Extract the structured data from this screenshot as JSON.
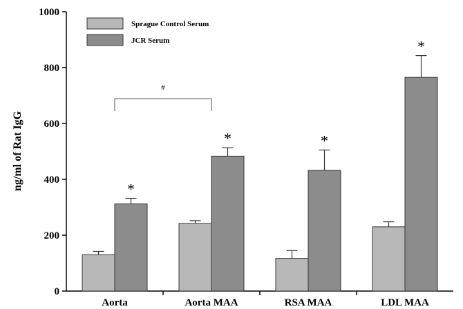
{
  "chart_data": {
    "type": "bar",
    "categories": [
      "Aorta",
      "Aorta MAA",
      "RSA MAA",
      "LDL MAA"
    ],
    "series": [
      {
        "name": "Sprague Control Serum",
        "color": "#b8b8b8",
        "values": [
          130,
          242,
          117,
          230
        ],
        "errors": [
          12,
          10,
          28,
          18
        ]
      },
      {
        "name": "JCR Serum",
        "color": "#8c8c8c",
        "values": [
          312,
          483,
          432,
          765
        ],
        "errors": [
          20,
          30,
          73,
          78
        ]
      }
    ],
    "ylabel": "ng/ml of Rat IgG",
    "ylim": [
      0,
      1000
    ],
    "yticks": [
      0,
      200,
      400,
      600,
      800,
      1000
    ],
    "significance_marker": "*",
    "bracket": {
      "from_category": "Aorta",
      "to_category": "Aorta MAA",
      "label": "#"
    },
    "legend_position": "top-left",
    "grid": false
  }
}
